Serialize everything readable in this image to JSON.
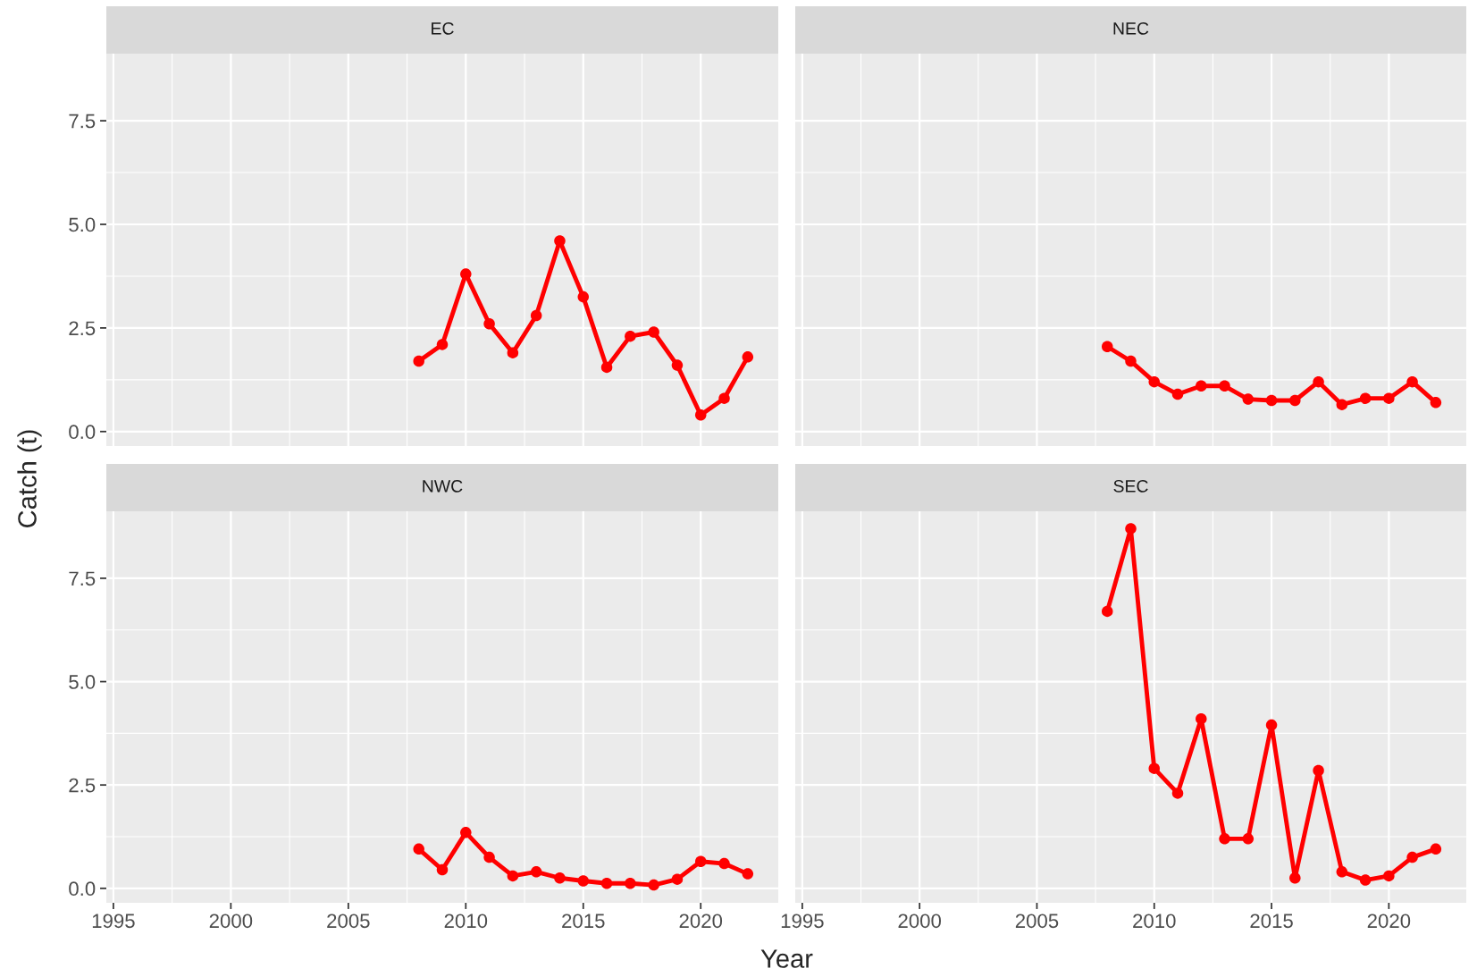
{
  "chart_data": [
    {
      "type": "line",
      "title": "EC",
      "ylabel": "Catch (t)",
      "x": [
        2008,
        2009,
        2010,
        2011,
        2012,
        2013,
        2014,
        2015,
        2016,
        2017,
        2018,
        2019,
        2020,
        2021,
        2022
      ],
      "series": [
        {
          "color": "#ff0000",
          "values": [
            1.7,
            2.1,
            3.8,
            2.6,
            1.9,
            2.8,
            4.6,
            3.25,
            1.55,
            2.3,
            2.4,
            1.6,
            0.4,
            0.8,
            1.8
          ]
        }
      ],
      "xlim": [
        1994.7,
        2023.3
      ],
      "xticks": [
        {
          "value": 1995,
          "label": null
        },
        {
          "value": 2000,
          "label": null
        },
        {
          "value": 2005,
          "label": null
        },
        {
          "value": 2010,
          "label": null
        },
        {
          "value": 2015,
          "label": null
        },
        {
          "value": 2020,
          "label": null
        }
      ],
      "ylim": [
        -0.35,
        9.12
      ],
      "yticks": [
        {
          "value": 0,
          "label": "0.0"
        },
        {
          "value": 2.5,
          "label": "2.5"
        },
        {
          "value": 5,
          "label": "5.0"
        },
        {
          "value": 7.5,
          "label": "7.5"
        }
      ],
      "grid": true,
      "marker": "circle",
      "line_style": "solid",
      "tick_labels": "y"
    },
    {
      "type": "line",
      "title": "NEC",
      "x": [
        2008,
        2009,
        2010,
        2011,
        2012,
        2013,
        2014,
        2015,
        2016,
        2017,
        2018,
        2019,
        2020,
        2021,
        2022
      ],
      "series": [
        {
          "color": "#ff0000",
          "values": [
            2.05,
            1.7,
            1.2,
            0.9,
            1.1,
            1.1,
            0.78,
            0.75,
            0.75,
            1.2,
            0.65,
            0.8,
            0.8,
            1.2,
            0.7
          ]
        }
      ],
      "xlim": [
        1994.7,
        2023.3
      ],
      "xticks": [
        {
          "value": 1995,
          "label": null
        },
        {
          "value": 2000,
          "label": null
        },
        {
          "value": 2005,
          "label": null
        },
        {
          "value": 2010,
          "label": null
        },
        {
          "value": 2015,
          "label": null
        },
        {
          "value": 2020,
          "label": null
        }
      ],
      "ylim": [
        -0.35,
        9.12
      ],
      "yticks": [
        {
          "value": 0,
          "label": null
        },
        {
          "value": 2.5,
          "label": null
        },
        {
          "value": 5,
          "label": null
        },
        {
          "value": 7.5,
          "label": null
        }
      ],
      "grid": true,
      "marker": "circle",
      "line_style": "solid",
      "tick_labels": false
    },
    {
      "type": "line",
      "title": "NWC",
      "xlabel": "Year",
      "x": [
        2008,
        2009,
        2010,
        2011,
        2012,
        2013,
        2014,
        2015,
        2016,
        2017,
        2018,
        2019,
        2020,
        2021,
        2022
      ],
      "series": [
        {
          "color": "#ff0000",
          "values": [
            0.95,
            0.45,
            1.35,
            0.75,
            0.3,
            0.4,
            0.25,
            0.18,
            0.12,
            0.12,
            0.08,
            0.22,
            0.65,
            0.6,
            0.35
          ]
        }
      ],
      "xlim": [
        1994.7,
        2023.3
      ],
      "xticks": [
        1995,
        2000,
        2005,
        2010,
        2015,
        2020
      ],
      "ylim": [
        -0.35,
        9.12
      ],
      "yticks": [
        {
          "value": 0,
          "label": "0.0"
        },
        {
          "value": 2.5,
          "label": "2.5"
        },
        {
          "value": 5,
          "label": "5.0"
        },
        {
          "value": 7.5,
          "label": "7.5"
        }
      ],
      "grid": true,
      "marker": "circle",
      "line_style": "solid"
    },
    {
      "type": "line",
      "title": "SEC",
      "x": [
        2008,
        2009,
        2010,
        2011,
        2012,
        2013,
        2014,
        2015,
        2016,
        2017,
        2018,
        2019,
        2020,
        2021,
        2022
      ],
      "series": [
        {
          "color": "#ff0000",
          "values": [
            6.7,
            8.7,
            2.9,
            2.3,
            4.1,
            1.2,
            1.2,
            3.95,
            0.25,
            2.85,
            0.4,
            0.2,
            0.3,
            0.75,
            0.95
          ]
        }
      ],
      "xlim": [
        1994.7,
        2023.3
      ],
      "xticks": [
        1995,
        2000,
        2005,
        2010,
        2015,
        2020
      ],
      "ylim": [
        -0.35,
        9.12
      ],
      "yticks": [
        {
          "value": 0,
          "label": null
        },
        {
          "value": 2.5,
          "label": null
        },
        {
          "value": 5,
          "label": null
        },
        {
          "value": 7.5,
          "label": null
        }
      ],
      "grid": true,
      "marker": "circle",
      "line_style": "solid",
      "tick_labels": "x"
    }
  ]
}
